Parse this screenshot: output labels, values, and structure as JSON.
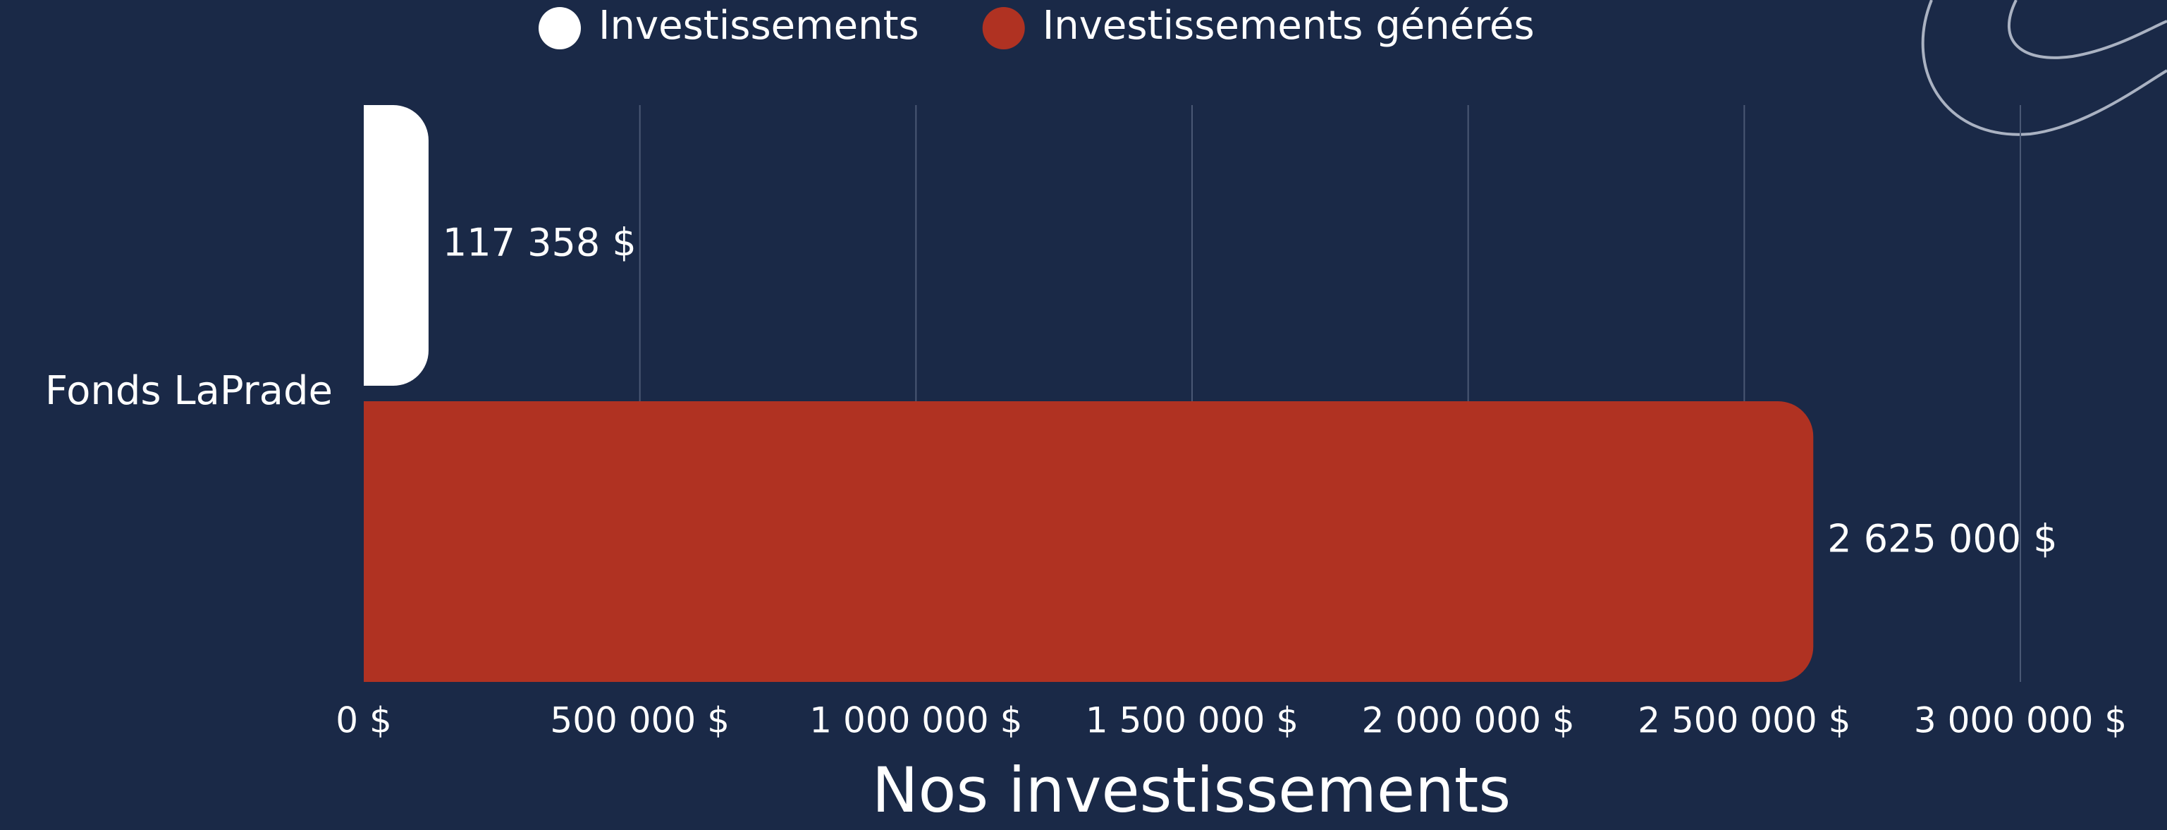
{
  "chart_data": {
    "type": "hbar",
    "title": "Nos investissements",
    "categories": [
      "Fonds LaPrade"
    ],
    "series": [
      {
        "name": "Investissements",
        "color": "#ffffff",
        "values": [
          117358
        ],
        "value_labels": [
          "117 358 $"
        ]
      },
      {
        "name": "Investissements générés",
        "color": "#b03222",
        "values": [
          2625000
        ],
        "value_labels": [
          "2 625 000 $"
        ]
      }
    ],
    "xlim": [
      0,
      3000000
    ],
    "xticks": [
      {
        "value": 0,
        "label": "0 $"
      },
      {
        "value": 500000,
        "label": "500 000 $"
      },
      {
        "value": 1000000,
        "label": "1 000 000 $"
      },
      {
        "value": 1500000,
        "label": "1 500 000 $"
      },
      {
        "value": 2000000,
        "label": "2 000 000 $"
      },
      {
        "value": 2500000,
        "label": "2 500 000 $"
      },
      {
        "value": 3000000,
        "label": "3 000 000 $"
      }
    ],
    "grid": true,
    "legend": "top"
  }
}
